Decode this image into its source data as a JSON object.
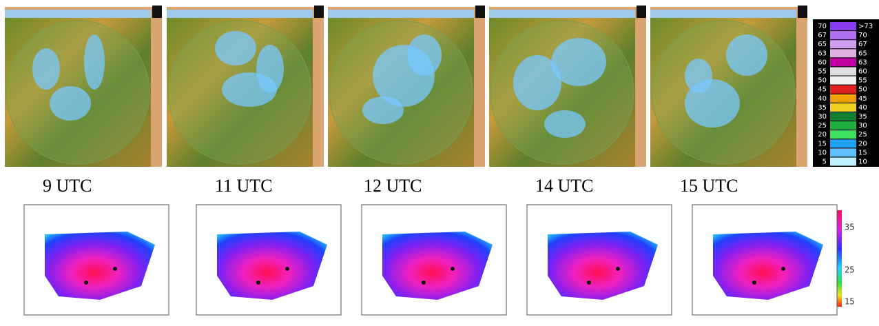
{
  "panels": [
    {
      "label": "9 UTC"
    },
    {
      "label": "11 UTC"
    },
    {
      "label": "12 UTC"
    },
    {
      "label": "14 UTC"
    },
    {
      "label": "15 UTC"
    }
  ],
  "radar_legend": {
    "rows": [
      [
        "70",
        ">73"
      ],
      [
        "67",
        "70"
      ],
      [
        "65",
        "67"
      ],
      [
        "63",
        "65"
      ],
      [
        "60",
        "63"
      ],
      [
        "55",
        "60"
      ],
      [
        "50",
        "55"
      ],
      [
        "45",
        "50"
      ],
      [
        "40",
        "45"
      ],
      [
        "35",
        "40"
      ],
      [
        "30",
        "35"
      ],
      [
        "25",
        "30"
      ],
      [
        "20",
        "25"
      ],
      [
        "15",
        "20"
      ],
      [
        "10",
        "15"
      ],
      [
        "5",
        "10"
      ]
    ]
  },
  "map_colorbar": {
    "ticks": [
      "35",
      "25",
      "15"
    ]
  }
}
